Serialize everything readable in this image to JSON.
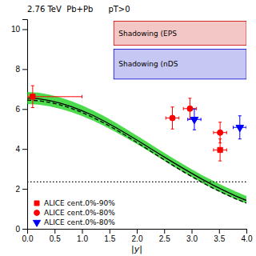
{
  "chart_data": {
    "type": "scatter",
    "xlabel": "|y|",
    "xlim": [
      0,
      4.0
    ],
    "ylim": [
      0,
      10.5
    ],
    "xticks": [
      {
        "value": 0,
        "label": "0.0"
      },
      0.5,
      {
        "value": 1,
        "label": "1.0"
      },
      1.5,
      {
        "value": 2,
        "label": "2.0"
      },
      2.5,
      {
        "value": 3,
        "label": "3.0"
      },
      3.5,
      {
        "value": 4,
        "label": "4.0"
      }
    ],
    "yticks": [
      0,
      2,
      4,
      6,
      8,
      10
    ],
    "legend": "lower left",
    "annotations": [
      "2.76 TeV  Pb+Pb      pT>0"
    ],
    "regions": [
      {
        "name": "Shadowing (EPS",
        "color": "#cc0000",
        "x": [
          1.58,
          4.0
        ],
        "y": [
          9.2,
          10.4
        ]
      },
      {
        "name": "Shadowing (nDS",
        "color": "#0000cc",
        "x": [
          1.58,
          4.0
        ],
        "y": [
          7.5,
          9.0
        ]
      }
    ],
    "series": [
      {
        "name": "ALICE cent.0%-90%",
        "type": "scatter",
        "marker": "square",
        "color": "red",
        "x": [
          0.1,
          3.52
        ],
        "values": [
          6.62,
          3.95
        ],
        "xerr_minus": [
          0.1,
          0.12
        ],
        "xerr_plus": [
          0.9,
          0.12
        ],
        "yerr": [
          0.55,
          0.55
        ]
      },
      {
        "name": "ALICE cent.0%-80%",
        "type": "scatter",
        "marker": "circle",
        "color": "red",
        "x": [
          2.65,
          2.97,
          3.52
        ],
        "values": [
          5.55,
          6.02,
          4.82
        ],
        "xerr_minus": [
          0.12,
          0.12,
          0.12
        ],
        "xerr_plus": [
          0.12,
          0.12,
          0.12
        ],
        "yerr": [
          0.55,
          0.52,
          0.52
        ]
      },
      {
        "name": "ALICE cent.0%-80%",
        "type": "scatter",
        "marker": "triangle-down",
        "color": "blue",
        "x": [
          3.05,
          3.88
        ],
        "values": [
          5.48,
          5.08
        ],
        "xerr_minus": [
          0.12,
          0.12
        ],
        "xerr_plus": [
          0.12,
          0.12
        ],
        "yerr": [
          0.52,
          0.58
        ]
      },
      {
        "type": "band",
        "color": "#00cc00",
        "x": [
          0.0,
          0.2,
          0.4,
          0.6,
          0.8,
          1.0,
          1.2,
          1.4,
          1.6,
          1.8,
          2.0,
          2.2,
          2.4,
          2.6,
          2.8,
          3.0,
          3.2,
          3.4,
          3.6,
          3.8,
          4.0
        ],
        "lower": [
          6.25,
          6.22,
          6.14,
          6.01,
          5.85,
          5.65,
          5.42,
          5.16,
          4.87,
          4.57,
          4.25,
          3.92,
          3.58,
          3.24,
          2.91,
          2.59,
          2.28,
          1.99,
          1.73,
          1.48,
          1.26
        ],
        "upper": [
          6.85,
          6.82,
          6.72,
          6.58,
          6.4,
          6.18,
          5.93,
          5.65,
          5.34,
          5.01,
          4.67,
          4.33,
          3.98,
          3.64,
          3.31,
          2.99,
          2.68,
          2.39,
          2.12,
          1.87,
          1.64
        ]
      },
      {
        "type": "line",
        "color": "black",
        "line_style": "solid",
        "x": [
          0.0,
          0.2,
          0.4,
          0.6,
          0.8,
          1.0,
          1.2,
          1.4,
          1.6,
          1.8,
          2.0,
          2.2,
          2.4,
          2.6,
          2.8,
          3.0,
          3.2,
          3.4,
          3.6,
          3.8,
          4.0
        ],
        "values": [
          6.55,
          6.52,
          6.43,
          6.3,
          6.13,
          5.92,
          5.68,
          5.4,
          5.1,
          4.78,
          4.45,
          4.11,
          3.77,
          3.43,
          3.1,
          2.78,
          2.47,
          2.18,
          1.91,
          1.65,
          1.42
        ]
      },
      {
        "type": "line",
        "color": "black",
        "line_style": "dashed",
        "x": [
          0.0,
          0.2,
          0.4,
          0.6,
          0.8,
          1.0,
          1.2,
          1.4,
          1.6,
          1.8,
          2.0,
          2.2,
          2.4,
          2.6,
          2.8,
          3.0,
          3.2,
          3.4,
          3.6,
          3.8,
          4.0
        ],
        "values": [
          6.45,
          6.42,
          6.34,
          6.21,
          6.04,
          5.83,
          5.58,
          5.3,
          5.0,
          4.67,
          4.33,
          3.98,
          3.63,
          3.28,
          2.94,
          2.62,
          2.31,
          2.02,
          1.76,
          1.51,
          1.29
        ]
      },
      {
        "type": "hline",
        "color": "black",
        "line_style": "dotted",
        "values": [
          2.35
        ]
      }
    ]
  }
}
